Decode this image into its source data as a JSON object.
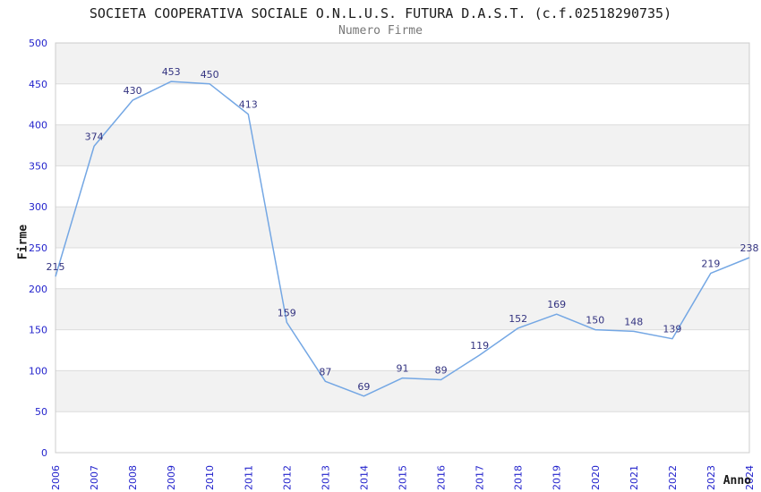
{
  "title": "SOCIETA COOPERATIVA SOCIALE O.N.L.U.S. FUTURA D.A.S.T. (c.f.02518290735)",
  "chart_data": {
    "type": "line",
    "title": "Numero Firme",
    "xlabel": "Anno",
    "ylabel": "Firme",
    "x": [
      "2006",
      "2007",
      "2008",
      "2009",
      "2010",
      "2011",
      "2012",
      "2013",
      "2014",
      "2015",
      "2016",
      "2017",
      "2018",
      "2019",
      "2020",
      "2021",
      "2022",
      "2023",
      "2024"
    ],
    "series": [
      {
        "name": "Numero Firme",
        "values": [
          215,
          374,
          430,
          453,
          450,
          413,
          159,
          87,
          69,
          91,
          89,
          119,
          152,
          169,
          150,
          148,
          139,
          219,
          238
        ]
      }
    ],
    "ylim": [
      0,
      500
    ],
    "ytick_step": 50,
    "yticks": [
      0,
      50,
      100,
      150,
      200,
      250,
      300,
      350,
      400,
      450,
      500
    ],
    "grid": "horizontal-alternating-bands",
    "legend": "none",
    "data_labels_shown": true,
    "colors": {
      "line": "#74a7e4",
      "tick_label": "#2323cc",
      "data_label": "#333380",
      "title": "#1a1a1a",
      "subtitle": "#777777",
      "axis_title": "#1a1a1a",
      "band": "#f2f2f2",
      "gridline": "#dcdcdc",
      "plot_border": "#cccccc",
      "background": "#ffffff"
    }
  }
}
